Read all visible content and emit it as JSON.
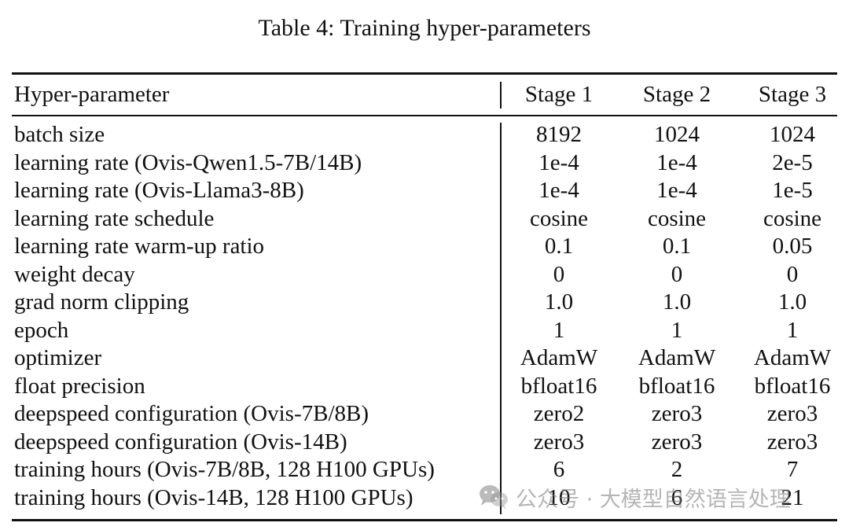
{
  "caption": "Table 4: Training hyper-parameters",
  "table": {
    "headers": [
      "Hyper-parameter",
      "Stage 1",
      "Stage 2",
      "Stage 3"
    ],
    "rows": [
      [
        "batch size",
        "8192",
        "1024",
        "1024"
      ],
      [
        "learning rate (Ovis-Qwen1.5-7B/14B)",
        "1e-4",
        "1e-4",
        "2e-5"
      ],
      [
        "learning rate (Ovis-Llama3-8B)",
        "1e-4",
        "1e-4",
        "1e-5"
      ],
      [
        "learning rate schedule",
        "cosine",
        "cosine",
        "cosine"
      ],
      [
        "learning rate warm-up ratio",
        "0.1",
        "0.1",
        "0.05"
      ],
      [
        "weight decay",
        "0",
        "0",
        "0"
      ],
      [
        "grad norm clipping",
        "1.0",
        "1.0",
        "1.0"
      ],
      [
        "epoch",
        "1",
        "1",
        "1"
      ],
      [
        "optimizer",
        "AdamW",
        "AdamW",
        "AdamW"
      ],
      [
        "float precision",
        "bfloat16",
        "bfloat16",
        "bfloat16"
      ],
      [
        "deepspeed configuration (Ovis-7B/8B)",
        "zero2",
        "zero3",
        "zero3"
      ],
      [
        "deepspeed configuration (Ovis-14B)",
        "zero3",
        "zero3",
        "zero3"
      ],
      [
        "training hours (Ovis-7B/8B, 128 H100 GPUs)",
        "6",
        "2",
        "7"
      ],
      [
        "training hours (Ovis-14B, 128 H100 GPUs)",
        "10",
        "6",
        "21"
      ]
    ]
  },
  "watermark": {
    "icon": "wechat-icon",
    "text": "公众号 · 大模型自然语言处理"
  }
}
